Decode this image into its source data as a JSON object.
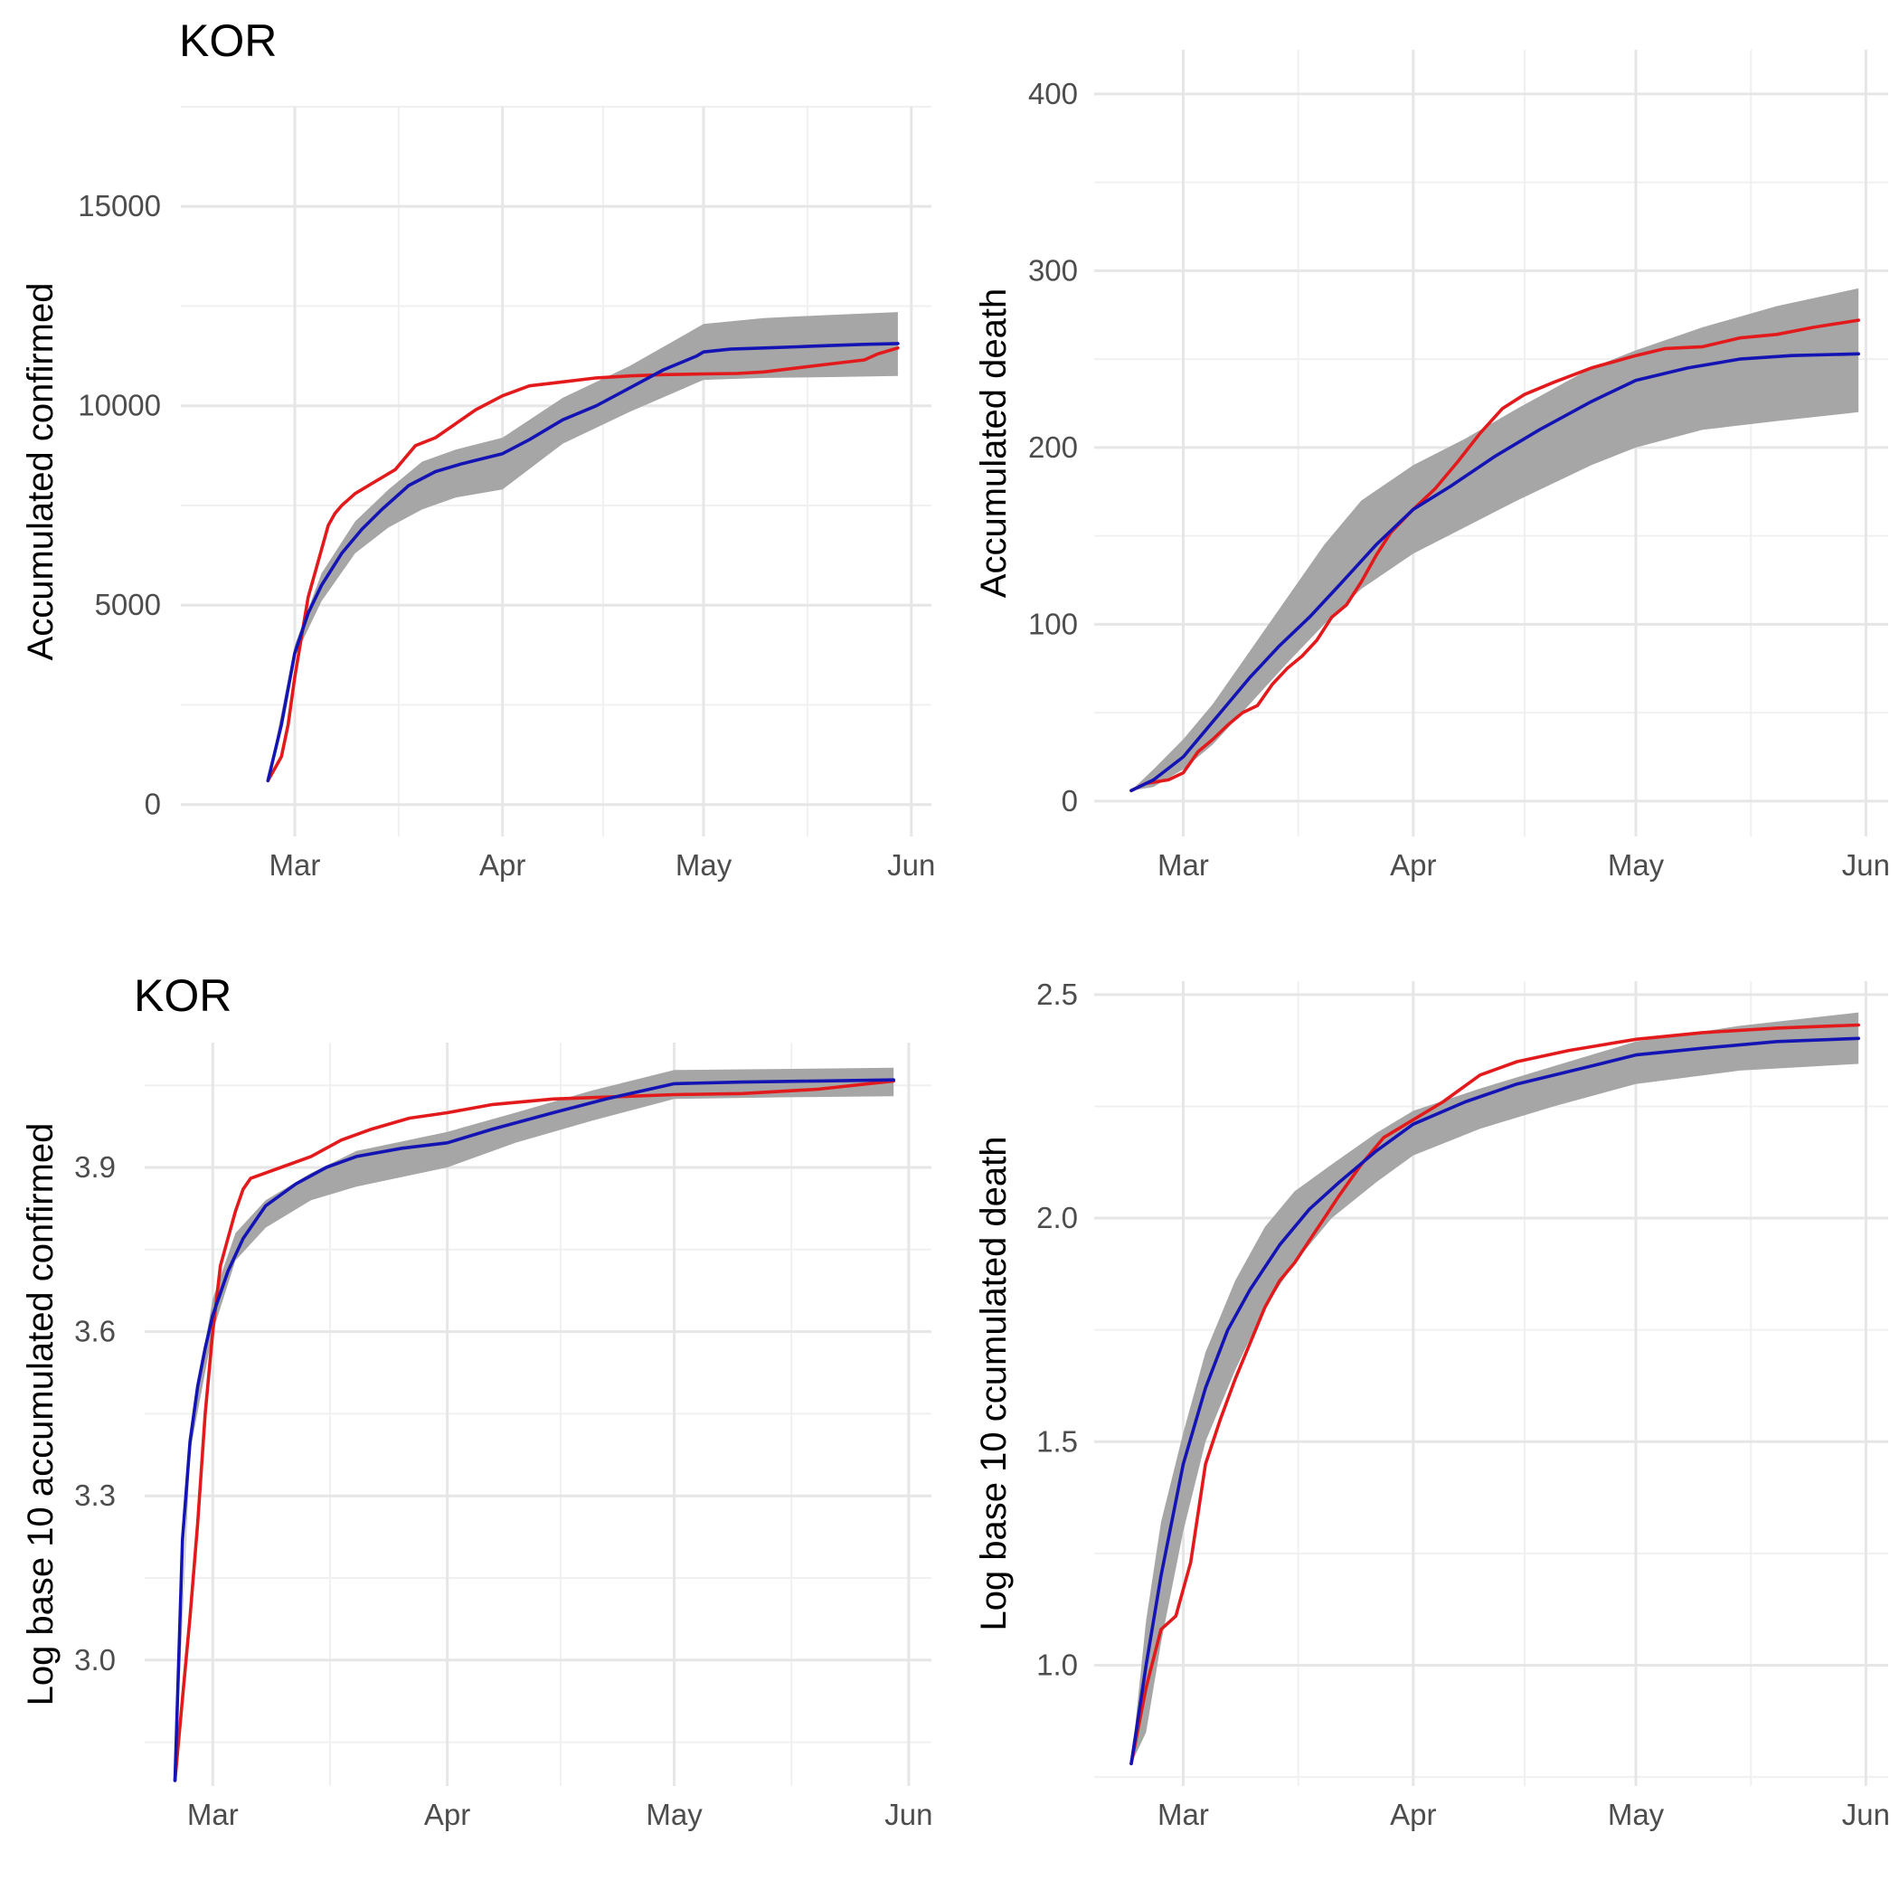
{
  "colors": {
    "observed": "#e31a1c",
    "observed_late": "#b2182b",
    "fitted": "#1414b4",
    "band": "#a6a6a6",
    "grid": "#e6e6e6",
    "tick_text": "#4d4d4d"
  },
  "chart_data": [
    {
      "type": "line",
      "title": "KOR",
      "ylabel": "Accumulated confirmed",
      "xlabel": "",
      "x_ticks": [
        "Mar",
        "Apr",
        "May",
        "Jun"
      ],
      "x_tick_dates": [
        "2020-03-01",
        "2020-04-01",
        "2020-05-01",
        "2020-06-01"
      ],
      "xlim": [
        "2020-02-13",
        "2020-06-04"
      ],
      "ylim": [
        -800,
        17500
      ],
      "y_ticks": [
        0,
        5000,
        10000,
        15000
      ],
      "y_tick_labels": [
        "0",
        "5000",
        "10000",
        "15000"
      ],
      "grid": true,
      "series": [
        {
          "role": "observed",
          "x": [
            "2020-02-26",
            "2020-02-27",
            "2020-02-28",
            "2020-02-29",
            "2020-03-01",
            "2020-03-02",
            "2020-03-03",
            "2020-03-04",
            "2020-03-05",
            "2020-03-06",
            "2020-03-07",
            "2020-03-08",
            "2020-03-10",
            "2020-03-13",
            "2020-03-16",
            "2020-03-19",
            "2020-03-22",
            "2020-03-25",
            "2020-03-28",
            "2020-04-01",
            "2020-04-05",
            "2020-04-10",
            "2020-04-15",
            "2020-04-20",
            "2020-04-25",
            "2020-05-01",
            "2020-05-06",
            "2020-05-10",
            "2020-05-15",
            "2020-05-20",
            "2020-05-25",
            "2020-05-27",
            "2020-05-30"
          ],
          "y": [
            600,
            900,
            1200,
            2000,
            3200,
            4200,
            5200,
            5800,
            6400,
            7000,
            7300,
            7500,
            7800,
            8100,
            8400,
            9000,
            9200,
            9550,
            9900,
            10250,
            10500,
            10600,
            10700,
            10750,
            10780,
            10800,
            10810,
            10850,
            10950,
            11050,
            11150,
            11300,
            11450
          ]
        },
        {
          "role": "fitted",
          "x": [
            "2020-02-26",
            "2020-02-28",
            "2020-03-01",
            "2020-03-03",
            "2020-03-05",
            "2020-03-08",
            "2020-03-11",
            "2020-03-14",
            "2020-03-18",
            "2020-03-22",
            "2020-03-26",
            "2020-04-01",
            "2020-04-05",
            "2020-04-10",
            "2020-04-15",
            "2020-04-20",
            "2020-04-25",
            "2020-04-30",
            "2020-05-01",
            "2020-05-05",
            "2020-05-10",
            "2020-05-15",
            "2020-05-20",
            "2020-05-25",
            "2020-05-30"
          ],
          "y": [
            600,
            2000,
            3800,
            4800,
            5500,
            6300,
            6900,
            7400,
            8000,
            8350,
            8550,
            8800,
            9150,
            9650,
            10000,
            10450,
            10900,
            11250,
            11350,
            11420,
            11450,
            11480,
            11510,
            11540,
            11560
          ]
        },
        {
          "role": "band_upper",
          "x": [
            "2020-02-26",
            "2020-03-01",
            "2020-03-05",
            "2020-03-10",
            "2020-03-15",
            "2020-03-20",
            "2020-03-25",
            "2020-04-01",
            "2020-04-10",
            "2020-04-20",
            "2020-05-01",
            "2020-05-10",
            "2020-05-20",
            "2020-05-30"
          ],
          "y": [
            600,
            4000,
            5800,
            7100,
            7900,
            8600,
            8900,
            9200,
            10200,
            11000,
            12050,
            12200,
            12280,
            12350
          ]
        },
        {
          "role": "band_lower",
          "x": [
            "2020-02-26",
            "2020-03-01",
            "2020-03-05",
            "2020-03-10",
            "2020-03-15",
            "2020-03-20",
            "2020-03-25",
            "2020-04-01",
            "2020-04-10",
            "2020-04-20",
            "2020-05-01",
            "2020-05-10",
            "2020-05-20",
            "2020-05-30"
          ],
          "y": [
            600,
            3700,
            5100,
            6300,
            6950,
            7400,
            7700,
            7900,
            9050,
            9850,
            10650,
            10700,
            10720,
            10750
          ]
        }
      ]
    },
    {
      "type": "line",
      "title": "",
      "ylabel": "Accumulated death",
      "xlabel": "",
      "x_ticks": [
        "Mar",
        "Apr",
        "May",
        "Jun"
      ],
      "x_tick_dates": [
        "2020-03-01",
        "2020-04-01",
        "2020-05-01",
        "2020-06-01"
      ],
      "xlim": [
        "2020-02-18",
        "2020-06-04"
      ],
      "ylim": [
        -20,
        425
      ],
      "y_ticks": [
        0,
        100,
        200,
        300,
        400
      ],
      "y_tick_labels": [
        "0",
        "100",
        "200",
        "300",
        "400"
      ],
      "grid": true,
      "series": [
        {
          "role": "observed",
          "x": [
            "2020-02-23",
            "2020-02-25",
            "2020-02-28",
            "2020-03-01",
            "2020-03-03",
            "2020-03-05",
            "2020-03-07",
            "2020-03-09",
            "2020-03-11",
            "2020-03-13",
            "2020-03-15",
            "2020-03-17",
            "2020-03-19",
            "2020-03-21",
            "2020-03-23",
            "2020-03-25",
            "2020-03-27",
            "2020-03-29",
            "2020-04-01",
            "2020-04-04",
            "2020-04-07",
            "2020-04-10",
            "2020-04-13",
            "2020-04-16",
            "2020-04-20",
            "2020-04-25",
            "2020-05-01",
            "2020-05-05",
            "2020-05-10",
            "2020-05-15",
            "2020-05-20",
            "2020-05-25",
            "2020-05-31"
          ],
          "y": [
            6,
            10,
            12,
            16,
            28,
            35,
            43,
            50,
            54,
            66,
            75,
            82,
            91,
            104,
            111,
            124,
            139,
            152,
            165,
            177,
            192,
            208,
            222,
            230,
            237,
            245,
            252,
            256,
            257,
            262,
            264,
            268,
            272
          ]
        },
        {
          "role": "fitted",
          "x": [
            "2020-02-23",
            "2020-02-26",
            "2020-03-01",
            "2020-03-04",
            "2020-03-07",
            "2020-03-10",
            "2020-03-14",
            "2020-03-18",
            "2020-03-22",
            "2020-03-27",
            "2020-04-01",
            "2020-04-06",
            "2020-04-12",
            "2020-04-18",
            "2020-04-25",
            "2020-05-01",
            "2020-05-08",
            "2020-05-15",
            "2020-05-22",
            "2020-05-31"
          ],
          "y": [
            6,
            12,
            25,
            40,
            55,
            70,
            88,
            104,
            122,
            145,
            165,
            178,
            195,
            210,
            226,
            238,
            245,
            250,
            252,
            253
          ]
        },
        {
          "role": "band_upper",
          "x": [
            "2020-02-23",
            "2020-02-26",
            "2020-03-01",
            "2020-03-05",
            "2020-03-10",
            "2020-03-15",
            "2020-03-20",
            "2020-03-25",
            "2020-04-01",
            "2020-04-08",
            "2020-04-15",
            "2020-04-25",
            "2020-05-01",
            "2020-05-10",
            "2020-05-20",
            "2020-05-31"
          ],
          "y": [
            6,
            18,
            35,
            55,
            85,
            115,
            145,
            170,
            190,
            205,
            222,
            245,
            255,
            268,
            280,
            290
          ]
        },
        {
          "role": "band_lower",
          "x": [
            "2020-02-23",
            "2020-02-26",
            "2020-03-01",
            "2020-03-05",
            "2020-03-10",
            "2020-03-15",
            "2020-03-20",
            "2020-03-25",
            "2020-04-01",
            "2020-04-08",
            "2020-04-15",
            "2020-04-25",
            "2020-05-01",
            "2020-05-10",
            "2020-05-20",
            "2020-05-31"
          ],
          "y": [
            6,
            8,
            18,
            32,
            55,
            78,
            100,
            120,
            140,
            155,
            170,
            190,
            200,
            210,
            215,
            220
          ]
        }
      ]
    },
    {
      "type": "line",
      "title": "KOR",
      "ylabel": "Log base 10 accumulated confirmed",
      "xlabel": "",
      "x_ticks": [
        "Mar",
        "Apr",
        "May",
        "Jun"
      ],
      "x_tick_dates": [
        "2020-03-01",
        "2020-04-01",
        "2020-05-01",
        "2020-06-01"
      ],
      "xlim": [
        "2020-02-21",
        "2020-06-04"
      ],
      "ylim": [
        2.77,
        4.128
      ],
      "y_ticks": [
        3.0,
        3.3,
        3.6,
        3.9
      ],
      "y_tick_labels": [
        "3.0",
        "3.3",
        "3.6",
        "3.9"
      ],
      "grid": true,
      "series": [
        {
          "role": "observed",
          "x": [
            "2020-02-25",
            "2020-02-26",
            "2020-02-27",
            "2020-02-28",
            "2020-02-29",
            "2020-03-01",
            "2020-03-02",
            "2020-03-03",
            "2020-03-04",
            "2020-03-05",
            "2020-03-06",
            "2020-03-08",
            "2020-03-10",
            "2020-03-14",
            "2020-03-18",
            "2020-03-22",
            "2020-03-27",
            "2020-04-01",
            "2020-04-07",
            "2020-04-15",
            "2020-04-25",
            "2020-05-01",
            "2020-05-10",
            "2020-05-20",
            "2020-05-30"
          ],
          "y": [
            2.78,
            2.93,
            3.08,
            3.25,
            3.45,
            3.6,
            3.72,
            3.77,
            3.82,
            3.86,
            3.88,
            3.89,
            3.9,
            3.92,
            3.95,
            3.97,
            3.99,
            4.0,
            4.015,
            4.025,
            4.03,
            4.033,
            4.035,
            4.043,
            4.058
          ]
        },
        {
          "role": "fitted",
          "x": [
            "2020-02-25",
            "2020-02-26",
            "2020-02-27",
            "2020-02-28",
            "2020-02-29",
            "2020-03-01",
            "2020-03-03",
            "2020-03-05",
            "2020-03-08",
            "2020-03-12",
            "2020-03-16",
            "2020-03-20",
            "2020-03-26",
            "2020-04-01",
            "2020-04-07",
            "2020-04-15",
            "2020-04-22",
            "2020-04-30",
            "2020-05-01",
            "2020-05-10",
            "2020-05-20",
            "2020-05-30"
          ],
          "y": [
            2.78,
            3.22,
            3.4,
            3.5,
            3.57,
            3.63,
            3.71,
            3.77,
            3.83,
            3.87,
            3.9,
            3.92,
            3.935,
            3.945,
            3.97,
            4.0,
            4.025,
            4.05,
            4.053,
            4.056,
            4.058,
            4.06
          ]
        },
        {
          "role": "band_upper",
          "x": [
            "2020-02-25",
            "2020-02-27",
            "2020-03-01",
            "2020-03-04",
            "2020-03-08",
            "2020-03-14",
            "2020-03-20",
            "2020-04-01",
            "2020-04-10",
            "2020-04-20",
            "2020-05-01",
            "2020-05-15",
            "2020-05-30"
          ],
          "y": [
            2.78,
            3.42,
            3.66,
            3.78,
            3.84,
            3.89,
            3.93,
            3.965,
            4.0,
            4.04,
            4.078,
            4.08,
            4.082
          ]
        },
        {
          "role": "band_lower",
          "x": [
            "2020-02-25",
            "2020-02-27",
            "2020-03-01",
            "2020-03-04",
            "2020-03-08",
            "2020-03-14",
            "2020-03-20",
            "2020-04-01",
            "2020-04-10",
            "2020-04-20",
            "2020-05-01",
            "2020-05-15",
            "2020-05-30"
          ],
          "y": [
            2.78,
            3.38,
            3.6,
            3.73,
            3.79,
            3.84,
            3.865,
            3.9,
            3.945,
            3.985,
            4.025,
            4.028,
            4.03
          ]
        }
      ]
    },
    {
      "type": "line",
      "title": "",
      "ylabel": "Log base 10 ccumulated death",
      "xlabel": "",
      "x_ticks": [
        "Mar",
        "Apr",
        "May",
        "Jun"
      ],
      "x_tick_dates": [
        "2020-03-01",
        "2020-04-01",
        "2020-05-01",
        "2020-06-01"
      ],
      "xlim": [
        "2020-02-18",
        "2020-06-04"
      ],
      "ylim": [
        0.73,
        2.53
      ],
      "y_ticks": [
        1.0,
        1.5,
        2.0,
        2.5
      ],
      "y_tick_labels": [
        "1.0",
        "1.5",
        "2.0",
        "2.5"
      ],
      "grid": true,
      "series": [
        {
          "role": "observed",
          "x": [
            "2020-02-23",
            "2020-02-25",
            "2020-02-27",
            "2020-02-29",
            "2020-03-02",
            "2020-03-04",
            "2020-03-06",
            "2020-03-08",
            "2020-03-10",
            "2020-03-12",
            "2020-03-14",
            "2020-03-16",
            "2020-03-18",
            "2020-03-20",
            "2020-03-22",
            "2020-03-25",
            "2020-03-28",
            "2020-04-01",
            "2020-04-05",
            "2020-04-10",
            "2020-04-15",
            "2020-04-22",
            "2020-05-01",
            "2020-05-10",
            "2020-05-20",
            "2020-05-31"
          ],
          "y": [
            0.78,
            0.95,
            1.08,
            1.11,
            1.23,
            1.45,
            1.55,
            1.64,
            1.72,
            1.8,
            1.86,
            1.9,
            1.95,
            2.0,
            2.05,
            2.12,
            2.18,
            2.22,
            2.26,
            2.32,
            2.35,
            2.375,
            2.4,
            2.415,
            2.425,
            2.432
          ]
        },
        {
          "role": "fitted",
          "x": [
            "2020-02-23",
            "2020-02-25",
            "2020-02-27",
            "2020-03-01",
            "2020-03-04",
            "2020-03-07",
            "2020-03-10",
            "2020-03-14",
            "2020-03-18",
            "2020-03-22",
            "2020-03-27",
            "2020-04-01",
            "2020-04-08",
            "2020-04-15",
            "2020-04-25",
            "2020-05-01",
            "2020-05-10",
            "2020-05-20",
            "2020-05-31"
          ],
          "y": [
            0.78,
            1.0,
            1.2,
            1.45,
            1.62,
            1.75,
            1.84,
            1.94,
            2.02,
            2.08,
            2.15,
            2.21,
            2.26,
            2.3,
            2.34,
            2.365,
            2.38,
            2.395,
            2.402
          ]
        },
        {
          "role": "band_upper",
          "x": [
            "2020-02-23",
            "2020-02-25",
            "2020-02-27",
            "2020-03-01",
            "2020-03-04",
            "2020-03-08",
            "2020-03-12",
            "2020-03-16",
            "2020-03-21",
            "2020-03-27",
            "2020-04-01",
            "2020-04-10",
            "2020-04-20",
            "2020-05-01",
            "2020-05-15",
            "2020-05-31"
          ],
          "y": [
            0.78,
            1.1,
            1.32,
            1.52,
            1.7,
            1.86,
            1.98,
            2.06,
            2.12,
            2.19,
            2.24,
            2.29,
            2.34,
            2.395,
            2.43,
            2.46
          ]
        },
        {
          "role": "band_lower",
          "x": [
            "2020-02-23",
            "2020-02-25",
            "2020-02-27",
            "2020-03-01",
            "2020-03-04",
            "2020-03-08",
            "2020-03-12",
            "2020-03-16",
            "2020-03-21",
            "2020-03-27",
            "2020-04-01",
            "2020-04-10",
            "2020-04-20",
            "2020-05-01",
            "2020-05-15",
            "2020-05-31"
          ],
          "y": [
            0.78,
            0.85,
            1.05,
            1.3,
            1.5,
            1.66,
            1.8,
            1.9,
            2.0,
            2.08,
            2.14,
            2.2,
            2.25,
            2.3,
            2.33,
            2.345
          ]
        }
      ]
    }
  ]
}
